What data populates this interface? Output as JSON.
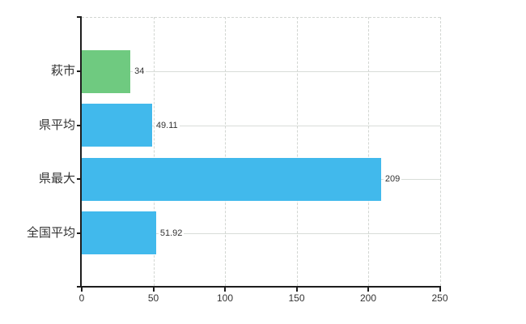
{
  "chart_data": {
    "type": "bar",
    "orientation": "horizontal",
    "title": "",
    "xlabel": "",
    "ylabel": "",
    "categories": [
      "萩市",
      "県平均",
      "県最大",
      "全国平均"
    ],
    "values": [
      34,
      49.11,
      209,
      51.92
    ],
    "value_labels": [
      "34",
      "49.11",
      "209",
      "51.92"
    ],
    "bar_colors": [
      "#6fca80",
      "#41b9ec",
      "#41b9ec",
      "#41b9ec"
    ],
    "xlim": [
      0,
      250
    ],
    "x_ticks": [
      "0",
      "50",
      "100",
      "150",
      "200",
      "250"
    ],
    "x_tick_values": [
      0,
      50,
      100,
      150,
      200,
      250
    ],
    "grid": "on",
    "legend": "none"
  },
  "colors": {
    "highlight_bar": "#6fca80",
    "default_bar": "#41b9ec",
    "gridline": "#d2d6d2",
    "axis": "#1d1d1d",
    "text": "#333333",
    "background": "#ffffff"
  }
}
